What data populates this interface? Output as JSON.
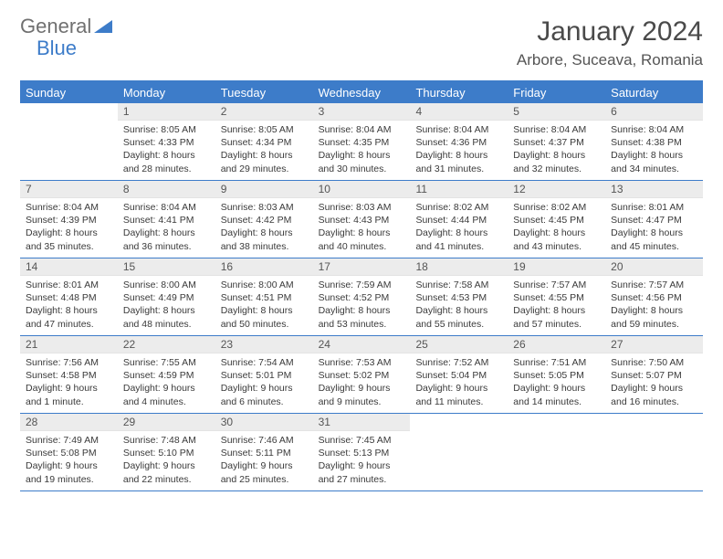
{
  "logo": {
    "line1": "General",
    "line2": "Blue"
  },
  "title": "January 2024",
  "location": "Arbore, Suceava, Romania",
  "colors": {
    "accent": "#3d7cc9",
    "dayHeaderBg": "#ececec",
    "text": "#3a3a3a",
    "background": "#ffffff"
  },
  "daysOfWeek": [
    "Sunday",
    "Monday",
    "Tuesday",
    "Wednesday",
    "Thursday",
    "Friday",
    "Saturday"
  ],
  "weeks": [
    [
      {
        "n": "",
        "sunrise": "",
        "sunset": "",
        "daylight": ""
      },
      {
        "n": "1",
        "sunrise": "Sunrise: 8:05 AM",
        "sunset": "Sunset: 4:33 PM",
        "daylight": "Daylight: 8 hours and 28 minutes."
      },
      {
        "n": "2",
        "sunrise": "Sunrise: 8:05 AM",
        "sunset": "Sunset: 4:34 PM",
        "daylight": "Daylight: 8 hours and 29 minutes."
      },
      {
        "n": "3",
        "sunrise": "Sunrise: 8:04 AM",
        "sunset": "Sunset: 4:35 PM",
        "daylight": "Daylight: 8 hours and 30 minutes."
      },
      {
        "n": "4",
        "sunrise": "Sunrise: 8:04 AM",
        "sunset": "Sunset: 4:36 PM",
        "daylight": "Daylight: 8 hours and 31 minutes."
      },
      {
        "n": "5",
        "sunrise": "Sunrise: 8:04 AM",
        "sunset": "Sunset: 4:37 PM",
        "daylight": "Daylight: 8 hours and 32 minutes."
      },
      {
        "n": "6",
        "sunrise": "Sunrise: 8:04 AM",
        "sunset": "Sunset: 4:38 PM",
        "daylight": "Daylight: 8 hours and 34 minutes."
      }
    ],
    [
      {
        "n": "7",
        "sunrise": "Sunrise: 8:04 AM",
        "sunset": "Sunset: 4:39 PM",
        "daylight": "Daylight: 8 hours and 35 minutes."
      },
      {
        "n": "8",
        "sunrise": "Sunrise: 8:04 AM",
        "sunset": "Sunset: 4:41 PM",
        "daylight": "Daylight: 8 hours and 36 minutes."
      },
      {
        "n": "9",
        "sunrise": "Sunrise: 8:03 AM",
        "sunset": "Sunset: 4:42 PM",
        "daylight": "Daylight: 8 hours and 38 minutes."
      },
      {
        "n": "10",
        "sunrise": "Sunrise: 8:03 AM",
        "sunset": "Sunset: 4:43 PM",
        "daylight": "Daylight: 8 hours and 40 minutes."
      },
      {
        "n": "11",
        "sunrise": "Sunrise: 8:02 AM",
        "sunset": "Sunset: 4:44 PM",
        "daylight": "Daylight: 8 hours and 41 minutes."
      },
      {
        "n": "12",
        "sunrise": "Sunrise: 8:02 AM",
        "sunset": "Sunset: 4:45 PM",
        "daylight": "Daylight: 8 hours and 43 minutes."
      },
      {
        "n": "13",
        "sunrise": "Sunrise: 8:01 AM",
        "sunset": "Sunset: 4:47 PM",
        "daylight": "Daylight: 8 hours and 45 minutes."
      }
    ],
    [
      {
        "n": "14",
        "sunrise": "Sunrise: 8:01 AM",
        "sunset": "Sunset: 4:48 PM",
        "daylight": "Daylight: 8 hours and 47 minutes."
      },
      {
        "n": "15",
        "sunrise": "Sunrise: 8:00 AM",
        "sunset": "Sunset: 4:49 PM",
        "daylight": "Daylight: 8 hours and 48 minutes."
      },
      {
        "n": "16",
        "sunrise": "Sunrise: 8:00 AM",
        "sunset": "Sunset: 4:51 PM",
        "daylight": "Daylight: 8 hours and 50 minutes."
      },
      {
        "n": "17",
        "sunrise": "Sunrise: 7:59 AM",
        "sunset": "Sunset: 4:52 PM",
        "daylight": "Daylight: 8 hours and 53 minutes."
      },
      {
        "n": "18",
        "sunrise": "Sunrise: 7:58 AM",
        "sunset": "Sunset: 4:53 PM",
        "daylight": "Daylight: 8 hours and 55 minutes."
      },
      {
        "n": "19",
        "sunrise": "Sunrise: 7:57 AM",
        "sunset": "Sunset: 4:55 PM",
        "daylight": "Daylight: 8 hours and 57 minutes."
      },
      {
        "n": "20",
        "sunrise": "Sunrise: 7:57 AM",
        "sunset": "Sunset: 4:56 PM",
        "daylight": "Daylight: 8 hours and 59 minutes."
      }
    ],
    [
      {
        "n": "21",
        "sunrise": "Sunrise: 7:56 AM",
        "sunset": "Sunset: 4:58 PM",
        "daylight": "Daylight: 9 hours and 1 minute."
      },
      {
        "n": "22",
        "sunrise": "Sunrise: 7:55 AM",
        "sunset": "Sunset: 4:59 PM",
        "daylight": "Daylight: 9 hours and 4 minutes."
      },
      {
        "n": "23",
        "sunrise": "Sunrise: 7:54 AM",
        "sunset": "Sunset: 5:01 PM",
        "daylight": "Daylight: 9 hours and 6 minutes."
      },
      {
        "n": "24",
        "sunrise": "Sunrise: 7:53 AM",
        "sunset": "Sunset: 5:02 PM",
        "daylight": "Daylight: 9 hours and 9 minutes."
      },
      {
        "n": "25",
        "sunrise": "Sunrise: 7:52 AM",
        "sunset": "Sunset: 5:04 PM",
        "daylight": "Daylight: 9 hours and 11 minutes."
      },
      {
        "n": "26",
        "sunrise": "Sunrise: 7:51 AM",
        "sunset": "Sunset: 5:05 PM",
        "daylight": "Daylight: 9 hours and 14 minutes."
      },
      {
        "n": "27",
        "sunrise": "Sunrise: 7:50 AM",
        "sunset": "Sunset: 5:07 PM",
        "daylight": "Daylight: 9 hours and 16 minutes."
      }
    ],
    [
      {
        "n": "28",
        "sunrise": "Sunrise: 7:49 AM",
        "sunset": "Sunset: 5:08 PM",
        "daylight": "Daylight: 9 hours and 19 minutes."
      },
      {
        "n": "29",
        "sunrise": "Sunrise: 7:48 AM",
        "sunset": "Sunset: 5:10 PM",
        "daylight": "Daylight: 9 hours and 22 minutes."
      },
      {
        "n": "30",
        "sunrise": "Sunrise: 7:46 AM",
        "sunset": "Sunset: 5:11 PM",
        "daylight": "Daylight: 9 hours and 25 minutes."
      },
      {
        "n": "31",
        "sunrise": "Sunrise: 7:45 AM",
        "sunset": "Sunset: 5:13 PM",
        "daylight": "Daylight: 9 hours and 27 minutes."
      },
      {
        "n": "",
        "sunrise": "",
        "sunset": "",
        "daylight": ""
      },
      {
        "n": "",
        "sunrise": "",
        "sunset": "",
        "daylight": ""
      },
      {
        "n": "",
        "sunrise": "",
        "sunset": "",
        "daylight": ""
      }
    ]
  ]
}
